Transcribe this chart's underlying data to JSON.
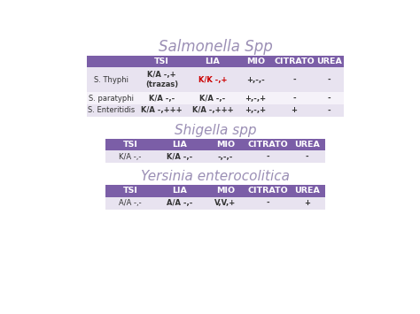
{
  "bg_color": "#ffffff",
  "title1": "Salmonella Spp",
  "title2": "Shigella spp",
  "title3": "Yersinia enterocolitica",
  "title_color": "#9b8fb5",
  "header_bg": "#7b5ea7",
  "header_text_color": "#ffffff",
  "row_bg_odd": "#e8e3f0",
  "row_bg_even": "#f5f2f9",
  "cell_text_color": "#333333",
  "special_color": "#cc0000",
  "sal_headers": [
    "",
    "TSI",
    "LIA",
    "MIO",
    "CITRATO",
    "UREA"
  ],
  "sal_rows": [
    [
      "S. Thyphi",
      "K/A -,+\n(trazas)",
      "K/K -,+",
      "+,-,-",
      "-",
      "-"
    ],
    [
      "S. paratyphi",
      "K/A -,-",
      "K/A -,-",
      "+,-,+",
      "-",
      "-"
    ],
    [
      "S. Enteritidis",
      "K/A -,+++",
      "K/A -,+++",
      "+,-,+",
      "+",
      "-"
    ]
  ],
  "shi_headers": [
    "TSI",
    "LIA",
    "MIO",
    "CITRATO",
    "UREA"
  ],
  "shi_rows": [
    [
      "K/A -,-",
      "K/A -,-",
      "-,-,-",
      "-",
      "-"
    ]
  ],
  "yer_headers": [
    "TSI",
    "LIA",
    "MIO",
    "CITRATO",
    "UREA"
  ],
  "yer_rows": [
    [
      "A/A -,-",
      "A/A -,-",
      "V,V,+",
      "-",
      "+"
    ]
  ]
}
